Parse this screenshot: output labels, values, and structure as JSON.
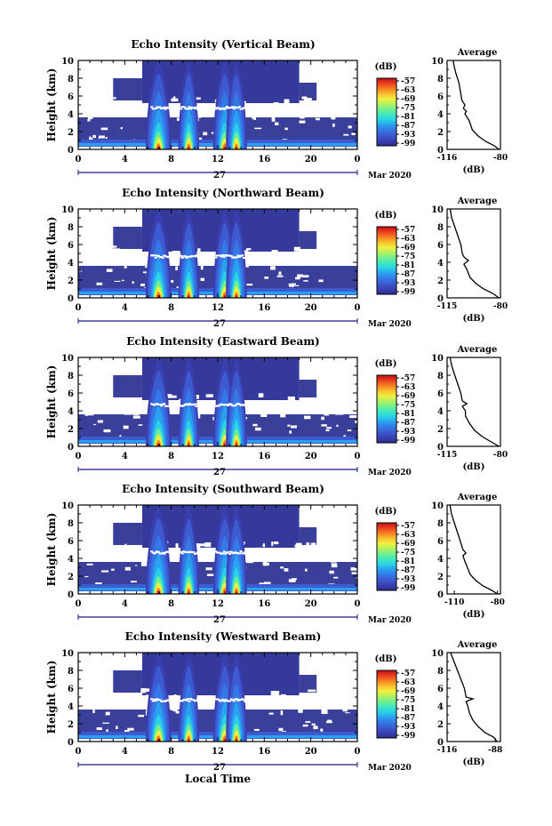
{
  "chart_data": [
    {
      "type": "heatmap",
      "title": "Echo Intensity (Vertical Beam)",
      "ylabel": "Height (km)",
      "ylim": [
        0,
        10
      ],
      "xlim": [
        0,
        24
      ],
      "xticks": [
        "0",
        "4",
        "8",
        "12",
        "16",
        "20",
        "0"
      ],
      "yticks": [
        "0",
        "2",
        "4",
        "6",
        "8",
        "10"
      ],
      "date_label": "27",
      "month_label": "Mar 2020",
      "colorbar": {
        "unit": "(dB)",
        "ticks": [
          "-57",
          "-63",
          "-69",
          "-75",
          "-81",
          "-87",
          "-93",
          "-99"
        ]
      },
      "profile": {
        "title": "Average",
        "xlabel": "(dB)",
        "xticks": [
          "-116",
          "-80"
        ],
        "xlim": [
          -116,
          -80
        ],
        "points": [
          [
            -112,
            10
          ],
          [
            -111,
            9.2
          ],
          [
            -110,
            8.5
          ],
          [
            -108,
            7.5
          ],
          [
            -107,
            6.5
          ],
          [
            -106,
            5.5
          ],
          [
            -104,
            5
          ],
          [
            -105,
            4.6
          ],
          [
            -103,
            4.3
          ],
          [
            -104,
            4
          ],
          [
            -101,
            3.2
          ],
          [
            -99,
            2.2
          ],
          [
            -95,
            1.5
          ],
          [
            -90,
            0.9
          ],
          [
            -84,
            0.4
          ],
          [
            -81,
            0
          ]
        ]
      }
    },
    {
      "type": "heatmap",
      "title": "Echo Intensity (Northward Beam)",
      "ylabel": "Height (km)",
      "ylim": [
        0,
        10
      ],
      "xlim": [
        0,
        24
      ],
      "xticks": [
        "0",
        "4",
        "8",
        "12",
        "16",
        "20",
        "0"
      ],
      "yticks": [
        "0",
        "2",
        "4",
        "6",
        "8",
        "10"
      ],
      "date_label": "27",
      "month_label": "Mar 2020",
      "colorbar": {
        "unit": "(dB)",
        "ticks": [
          "-57",
          "-63",
          "-69",
          "-75",
          "-81",
          "-87",
          "-93",
          "-99"
        ]
      },
      "profile": {
        "title": "Average",
        "xlabel": "(dB)",
        "xticks": [
          "-115",
          "-80"
        ],
        "xlim": [
          -115,
          -80
        ],
        "points": [
          [
            -113,
            10
          ],
          [
            -112,
            9
          ],
          [
            -110,
            8
          ],
          [
            -108,
            7
          ],
          [
            -106,
            6
          ],
          [
            -105,
            5
          ],
          [
            -104,
            4.6
          ],
          [
            -101,
            4.2
          ],
          [
            -104,
            3.8
          ],
          [
            -102,
            3.2
          ],
          [
            -100,
            2.3
          ],
          [
            -96,
            1.6
          ],
          [
            -91,
            1
          ],
          [
            -85,
            0.5
          ],
          [
            -81,
            0
          ]
        ]
      }
    },
    {
      "type": "heatmap",
      "title": "Echo Intensity (Eastward Beam)",
      "ylabel": "Height (km)",
      "ylim": [
        0,
        10
      ],
      "xlim": [
        0,
        24
      ],
      "xticks": [
        "0",
        "4",
        "8",
        "12",
        "16",
        "20",
        "0"
      ],
      "yticks": [
        "0",
        "2",
        "4",
        "6",
        "8",
        "10"
      ],
      "date_label": "27",
      "month_label": "Mar 2020",
      "colorbar": {
        "unit": "(dB)",
        "ticks": [
          "-57",
          "-63",
          "-69",
          "-75",
          "-81",
          "-87",
          "-93",
          "-99"
        ]
      },
      "profile": {
        "title": "Average",
        "xlabel": "(dB)",
        "xticks": [
          "-115",
          "-80"
        ],
        "xlim": [
          -115,
          -80
        ],
        "points": [
          [
            -113,
            10
          ],
          [
            -112,
            9.1
          ],
          [
            -110,
            8
          ],
          [
            -108,
            7
          ],
          [
            -106,
            6
          ],
          [
            -105,
            5.1
          ],
          [
            -102,
            4.8
          ],
          [
            -105,
            4.5
          ],
          [
            -103,
            4
          ],
          [
            -103,
            3.4
          ],
          [
            -100,
            2.5
          ],
          [
            -97,
            1.8
          ],
          [
            -92,
            1.1
          ],
          [
            -86,
            0.5
          ],
          [
            -81,
            0
          ]
        ]
      }
    },
    {
      "type": "heatmap",
      "title": "Echo Intensity (Southward Beam)",
      "ylabel": "Height (km)",
      "ylim": [
        0,
        10
      ],
      "xlim": [
        0,
        24
      ],
      "xticks": [
        "0",
        "4",
        "8",
        "12",
        "16",
        "20",
        "0"
      ],
      "yticks": [
        "0",
        "2",
        "4",
        "6",
        "8",
        "10"
      ],
      "date_label": "27",
      "month_label": "Mar 2020",
      "colorbar": {
        "unit": "(dB)",
        "ticks": [
          "-57",
          "-63",
          "-69",
          "-75",
          "-81",
          "-87",
          "-93",
          "-99"
        ]
      },
      "profile": {
        "title": "Average",
        "xlabel": "(dB)",
        "xticks": [
          "-110",
          "-80"
        ],
        "xlim": [
          -115,
          -78
        ],
        "points": [
          [
            -113,
            10
          ],
          [
            -112,
            9
          ],
          [
            -110,
            8
          ],
          [
            -108,
            7
          ],
          [
            -106,
            6
          ],
          [
            -104,
            5
          ],
          [
            -102,
            4.6
          ],
          [
            -104,
            4.3
          ],
          [
            -103,
            3.8
          ],
          [
            -101,
            3
          ],
          [
            -99,
            2.2
          ],
          [
            -95,
            1.5
          ],
          [
            -90,
            0.9
          ],
          [
            -84,
            0.4
          ],
          [
            -80,
            0
          ]
        ]
      }
    },
    {
      "type": "heatmap",
      "title": "Echo Intensity (Westward Beam)",
      "ylabel": "Height (km)",
      "xlabel": "Local Time",
      "ylim": [
        0,
        10
      ],
      "xlim": [
        0,
        24
      ],
      "xticks": [
        "0",
        "4",
        "8",
        "12",
        "16",
        "20",
        "0"
      ],
      "yticks": [
        "0",
        "2",
        "4",
        "6",
        "8",
        "10"
      ],
      "date_label": "27",
      "month_label": "Mar 2020",
      "colorbar": {
        "unit": "(dB)",
        "ticks": [
          "-57",
          "-63",
          "-69",
          "-75",
          "-81",
          "-87",
          "-93",
          "-99"
        ]
      },
      "profile": {
        "title": "Average",
        "xlabel": "(dB)",
        "xticks": [
          "-116",
          "-88"
        ],
        "xlim": [
          -116,
          -85
        ],
        "points": [
          [
            -114,
            10
          ],
          [
            -112,
            9
          ],
          [
            -110,
            8
          ],
          [
            -108,
            7
          ],
          [
            -106,
            6
          ],
          [
            -105,
            5
          ],
          [
            -101,
            4.8
          ],
          [
            -105,
            4.5
          ],
          [
            -104,
            4
          ],
          [
            -103,
            3.2
          ],
          [
            -101,
            2.4
          ],
          [
            -98,
            1.7
          ],
          [
            -94,
            1
          ],
          [
            -89,
            0.5
          ],
          [
            -87,
            0
          ]
        ]
      }
    }
  ],
  "colors": {
    "colormap": [
      "#2b2f8f",
      "#3a3fb0",
      "#3d5ad0",
      "#3478e8",
      "#2aa0f0",
      "#2ad0e8",
      "#40e8c0",
      "#70f090",
      "#b0f060",
      "#f0f040",
      "#f8c030",
      "#f88020",
      "#e84020",
      "#c01010"
    ],
    "background_echo": "#3a3f9a",
    "axis": "#000000",
    "date_axis": "#1a1a8a"
  }
}
